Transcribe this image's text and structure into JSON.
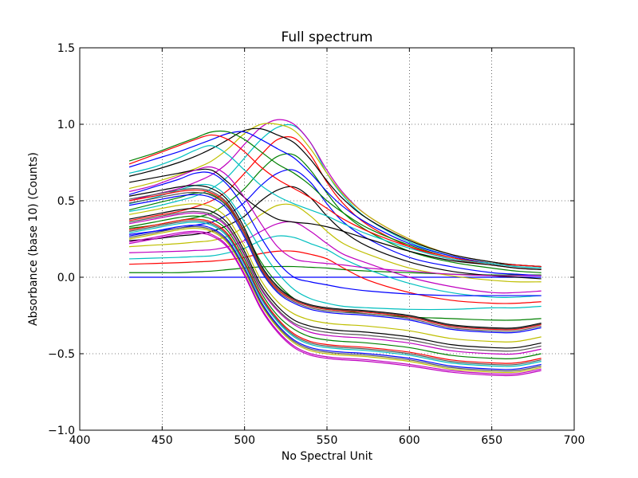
{
  "chart_data": {
    "type": "line",
    "title": "Full spectrum",
    "xlabel": "No Spectral Unit",
    "ylabel": "Absorbance (base 10) (Counts)",
    "xlim": [
      400,
      700
    ],
    "ylim": [
      -1.0,
      1.5
    ],
    "x_ticks": [
      "400",
      "450",
      "500",
      "550",
      "600",
      "650",
      "700"
    ],
    "y_ticks": [
      "−1.0",
      "−0.5",
      "0.0",
      "0.5",
      "1.0",
      "1.5"
    ],
    "grid": true,
    "legend": "none",
    "x": [
      430,
      445,
      460,
      470,
      480,
      490,
      500,
      510,
      520,
      530,
      540,
      550,
      560,
      575,
      600,
      625,
      650,
      665,
      680
    ],
    "series": [
      {
        "color": "#0000ff",
        "values": [
          0.0,
          0.0,
          0.0,
          0.0,
          0.0,
          0.0,
          0.0,
          0.0,
          0.0,
          0.0,
          0.0,
          0.0,
          0.0,
          0.0,
          0.0,
          0.0,
          0.0,
          0.0,
          0.0
        ]
      },
      {
        "color": "#008000",
        "values": [
          0.03,
          0.03,
          0.03,
          0.035,
          0.04,
          0.05,
          0.06,
          0.068,
          0.07,
          0.07,
          0.065,
          0.06,
          0.05,
          0.04,
          0.03,
          0.02,
          0.015,
          0.015,
          0.015
        ]
      },
      {
        "color": "#ff0000",
        "values": [
          0.085,
          0.09,
          0.095,
          0.1,
          0.105,
          0.115,
          0.13,
          0.155,
          0.17,
          0.17,
          0.15,
          0.12,
          0.06,
          -0.02,
          -0.1,
          -0.15,
          -0.17,
          -0.17,
          -0.16
        ]
      },
      {
        "color": "#00bfbf",
        "values": [
          0.12,
          0.125,
          0.13,
          0.135,
          0.14,
          0.16,
          0.19,
          0.24,
          0.27,
          0.26,
          0.22,
          0.18,
          0.12,
          0.05,
          -0.04,
          -0.1,
          -0.13,
          -0.13,
          -0.12
        ]
      },
      {
        "color": "#bf00bf",
        "values": [
          0.16,
          0.165,
          0.17,
          0.175,
          0.18,
          0.2,
          0.24,
          0.3,
          0.35,
          0.36,
          0.3,
          0.22,
          0.15,
          0.09,
          0.0,
          -0.06,
          -0.1,
          -0.1,
          -0.09
        ]
      },
      {
        "color": "#bfbf00",
        "values": [
          0.2,
          0.21,
          0.22,
          0.23,
          0.24,
          0.27,
          0.33,
          0.41,
          0.47,
          0.47,
          0.4,
          0.3,
          0.22,
          0.15,
          0.06,
          0.01,
          -0.02,
          -0.03,
          -0.03
        ]
      },
      {
        "color": "#000000",
        "values": [
          0.24,
          0.25,
          0.27,
          0.28,
          0.3,
          0.34,
          0.4,
          0.5,
          0.57,
          0.59,
          0.52,
          0.4,
          0.3,
          0.2,
          0.1,
          0.04,
          0.01,
          0.0,
          -0.01
        ]
      },
      {
        "color": "#0000ff",
        "values": [
          0.28,
          0.3,
          0.32,
          0.34,
          0.36,
          0.41,
          0.49,
          0.6,
          0.68,
          0.7,
          0.62,
          0.48,
          0.36,
          0.25,
          0.13,
          0.07,
          0.03,
          0.02,
          0.01
        ]
      },
      {
        "color": "#008000",
        "values": [
          0.32,
          0.34,
          0.37,
          0.39,
          0.42,
          0.49,
          0.58,
          0.7,
          0.79,
          0.8,
          0.7,
          0.55,
          0.42,
          0.3,
          0.17,
          0.1,
          0.06,
          0.04,
          0.03
        ]
      },
      {
        "color": "#ff0000",
        "values": [
          0.37,
          0.4,
          0.43,
          0.46,
          0.5,
          0.57,
          0.68,
          0.8,
          0.9,
          0.91,
          0.8,
          0.62,
          0.48,
          0.34,
          0.2,
          0.12,
          0.08,
          0.06,
          0.05
        ]
      },
      {
        "color": "#00bfbf",
        "values": [
          0.43,
          0.46,
          0.5,
          0.53,
          0.58,
          0.66,
          0.78,
          0.9,
          0.98,
          0.99,
          0.88,
          0.68,
          0.53,
          0.38,
          0.23,
          0.14,
          0.09,
          0.07,
          0.06
        ]
      },
      {
        "color": "#bf00bf",
        "values": [
          0.5,
          0.54,
          0.58,
          0.62,
          0.67,
          0.75,
          0.87,
          0.98,
          1.03,
          1.0,
          0.88,
          0.7,
          0.55,
          0.4,
          0.25,
          0.15,
          0.1,
          0.08,
          0.07
        ]
      },
      {
        "color": "#bfbf00",
        "values": [
          0.58,
          0.62,
          0.67,
          0.71,
          0.76,
          0.84,
          0.94,
          1.0,
          1.0,
          0.96,
          0.84,
          0.68,
          0.54,
          0.4,
          0.25,
          0.15,
          0.1,
          0.08,
          0.07
        ]
      },
      {
        "color": "#000000",
        "values": [
          0.66,
          0.7,
          0.75,
          0.79,
          0.84,
          0.9,
          0.96,
          0.97,
          0.93,
          0.88,
          0.77,
          0.63,
          0.51,
          0.38,
          0.24,
          0.15,
          0.1,
          0.08,
          0.07
        ]
      },
      {
        "color": "#0000ff",
        "values": [
          0.72,
          0.77,
          0.82,
          0.86,
          0.9,
          0.94,
          0.95,
          0.9,
          0.84,
          0.78,
          0.68,
          0.56,
          0.46,
          0.35,
          0.22,
          0.14,
          0.09,
          0.08,
          0.07
        ]
      },
      {
        "color": "#008000",
        "values": [
          0.76,
          0.81,
          0.87,
          0.91,
          0.95,
          0.95,
          0.9,
          0.82,
          0.74,
          0.68,
          0.6,
          0.5,
          0.42,
          0.32,
          0.21,
          0.13,
          0.09,
          0.08,
          0.07
        ]
      },
      {
        "color": "#ff0000",
        "values": [
          0.74,
          0.8,
          0.86,
          0.9,
          0.93,
          0.9,
          0.82,
          0.72,
          0.64,
          0.58,
          0.52,
          0.45,
          0.38,
          0.3,
          0.2,
          0.13,
          0.09,
          0.08,
          0.07
        ]
      },
      {
        "color": "#00bfbf",
        "values": [
          0.68,
          0.72,
          0.78,
          0.83,
          0.86,
          0.8,
          0.7,
          0.6,
          0.53,
          0.48,
          0.44,
          0.4,
          0.35,
          0.28,
          0.19,
          0.12,
          0.09,
          0.07,
          0.06
        ]
      },
      {
        "color": "#000000",
        "values": [
          0.62,
          0.65,
          0.68,
          0.7,
          0.7,
          0.62,
          0.52,
          0.44,
          0.38,
          0.36,
          0.35,
          0.33,
          0.3,
          0.25,
          0.17,
          0.11,
          0.08,
          0.06,
          0.05
        ]
      },
      {
        "color": "#bf00bf",
        "values": [
          0.56,
          0.6,
          0.66,
          0.7,
          0.72,
          0.66,
          0.52,
          0.35,
          0.2,
          0.12,
          0.1,
          0.09,
          0.08,
          0.06,
          0.04,
          0.02,
          0.01,
          0.01,
          0.01
        ]
      },
      {
        "color": "#0000ff",
        "values": [
          0.54,
          0.59,
          0.64,
          0.68,
          0.68,
          0.6,
          0.45,
          0.26,
          0.1,
          0.0,
          -0.03,
          -0.05,
          -0.07,
          -0.09,
          -0.11,
          -0.12,
          -0.12,
          -0.12,
          -0.12
        ]
      },
      {
        "color": "#00bfbf",
        "values": [
          0.48,
          0.52,
          0.57,
          0.6,
          0.6,
          0.52,
          0.36,
          0.18,
          0.03,
          -0.08,
          -0.14,
          -0.17,
          -0.19,
          -0.2,
          -0.21,
          -0.21,
          -0.2,
          -0.2,
          -0.19
        ]
      },
      {
        "color": "#008000",
        "values": [
          0.44,
          0.48,
          0.52,
          0.55,
          0.54,
          0.46,
          0.3,
          0.1,
          -0.04,
          -0.14,
          -0.19,
          -0.21,
          -0.22,
          -0.24,
          -0.26,
          -0.27,
          -0.28,
          -0.28,
          -0.27
        ]
      },
      {
        "color": "#000000",
        "values": [
          0.53,
          0.56,
          0.59,
          0.6,
          0.58,
          0.5,
          0.32,
          0.08,
          -0.06,
          -0.14,
          -0.18,
          -0.2,
          -0.21,
          -0.22,
          -0.25,
          -0.31,
          -0.33,
          -0.33,
          -0.3
        ]
      },
      {
        "color": "#ff0000",
        "values": [
          0.5,
          0.53,
          0.56,
          0.57,
          0.55,
          0.47,
          0.29,
          0.06,
          -0.08,
          -0.15,
          -0.19,
          -0.21,
          -0.22,
          -0.23,
          -0.26,
          -0.32,
          -0.34,
          -0.34,
          -0.31
        ]
      },
      {
        "color": "#0000ff",
        "values": [
          0.47,
          0.5,
          0.53,
          0.54,
          0.52,
          0.44,
          0.26,
          0.04,
          -0.1,
          -0.17,
          -0.21,
          -0.23,
          -0.24,
          -0.25,
          -0.28,
          -0.34,
          -0.36,
          -0.36,
          -0.33
        ]
      },
      {
        "color": "#bfbf00",
        "values": [
          0.41,
          0.44,
          0.47,
          0.48,
          0.46,
          0.38,
          0.2,
          -0.02,
          -0.16,
          -0.24,
          -0.28,
          -0.3,
          -0.31,
          -0.32,
          -0.35,
          -0.4,
          -0.42,
          -0.42,
          -0.39
        ]
      },
      {
        "color": "#000000",
        "values": [
          0.38,
          0.41,
          0.44,
          0.45,
          0.43,
          0.35,
          0.17,
          -0.05,
          -0.19,
          -0.28,
          -0.32,
          -0.34,
          -0.35,
          -0.36,
          -0.39,
          -0.44,
          -0.46,
          -0.46,
          -0.43
        ]
      },
      {
        "color": "#bf00bf",
        "values": [
          0.35,
          0.38,
          0.41,
          0.42,
          0.4,
          0.32,
          0.14,
          -0.08,
          -0.22,
          -0.31,
          -0.36,
          -0.38,
          -0.39,
          -0.4,
          -0.43,
          -0.48,
          -0.5,
          -0.5,
          -0.47
        ]
      },
      {
        "color": "#008000",
        "values": [
          0.33,
          0.36,
          0.39,
          0.4,
          0.38,
          0.3,
          0.12,
          -0.1,
          -0.25,
          -0.34,
          -0.39,
          -0.41,
          -0.42,
          -0.43,
          -0.46,
          -0.51,
          -0.53,
          -0.53,
          -0.5
        ]
      },
      {
        "color": "#ff0000",
        "values": [
          0.31,
          0.34,
          0.37,
          0.38,
          0.36,
          0.28,
          0.1,
          -0.12,
          -0.27,
          -0.37,
          -0.42,
          -0.44,
          -0.45,
          -0.46,
          -0.49,
          -0.54,
          -0.56,
          -0.56,
          -0.53
        ]
      },
      {
        "color": "#00bfbf",
        "values": [
          0.29,
          0.32,
          0.35,
          0.36,
          0.34,
          0.26,
          0.08,
          -0.14,
          -0.29,
          -0.39,
          -0.44,
          -0.46,
          -0.47,
          -0.48,
          -0.51,
          -0.56,
          -0.58,
          -0.58,
          -0.55
        ]
      },
      {
        "color": "#0000ff",
        "values": [
          0.27,
          0.3,
          0.33,
          0.34,
          0.32,
          0.24,
          0.06,
          -0.16,
          -0.31,
          -0.41,
          -0.46,
          -0.48,
          -0.49,
          -0.5,
          -0.53,
          -0.58,
          -0.6,
          -0.6,
          -0.57
        ]
      },
      {
        "color": "#bfbf00",
        "values": [
          0.25,
          0.28,
          0.31,
          0.32,
          0.3,
          0.22,
          0.04,
          -0.18,
          -0.33,
          -0.43,
          -0.48,
          -0.5,
          -0.51,
          -0.52,
          -0.55,
          -0.6,
          -0.62,
          -0.62,
          -0.59
        ]
      },
      {
        "color": "#bf00bf",
        "values": [
          0.23,
          0.26,
          0.29,
          0.3,
          0.28,
          0.2,
          0.02,
          -0.2,
          -0.35,
          -0.45,
          -0.5,
          -0.52,
          -0.53,
          -0.54,
          -0.57,
          -0.61,
          -0.63,
          -0.63,
          -0.6
        ]
      },
      {
        "color": "#555555",
        "values": [
          0.51,
          0.54,
          0.57,
          0.58,
          0.56,
          0.48,
          0.3,
          0.07,
          -0.07,
          -0.145,
          -0.185,
          -0.205,
          -0.215,
          -0.225,
          -0.255,
          -0.315,
          -0.335,
          -0.335,
          -0.305
        ]
      },
      {
        "color": "#555555",
        "values": [
          0.485,
          0.515,
          0.545,
          0.555,
          0.535,
          0.455,
          0.275,
          0.05,
          -0.09,
          -0.16,
          -0.2,
          -0.22,
          -0.23,
          -0.24,
          -0.27,
          -0.33,
          -0.35,
          -0.35,
          -0.32
        ]
      },
      {
        "color": "#555555",
        "values": [
          0.36,
          0.39,
          0.42,
          0.43,
          0.41,
          0.33,
          0.15,
          -0.07,
          -0.21,
          -0.3,
          -0.34,
          -0.36,
          -0.37,
          -0.38,
          -0.41,
          -0.46,
          -0.48,
          -0.48,
          -0.45
        ]
      },
      {
        "color": "#555555",
        "values": [
          0.3,
          0.33,
          0.36,
          0.37,
          0.35,
          0.27,
          0.09,
          -0.13,
          -0.28,
          -0.38,
          -0.43,
          -0.45,
          -0.46,
          -0.47,
          -0.5,
          -0.55,
          -0.57,
          -0.57,
          -0.54
        ]
      },
      {
        "color": "#555555",
        "values": [
          0.26,
          0.29,
          0.32,
          0.33,
          0.31,
          0.23,
          0.05,
          -0.17,
          -0.32,
          -0.42,
          -0.47,
          -0.49,
          -0.5,
          -0.51,
          -0.54,
          -0.59,
          -0.61,
          -0.61,
          -0.58
        ]
      },
      {
        "color": "#bf00bf",
        "values": [
          0.22,
          0.25,
          0.28,
          0.29,
          0.27,
          0.19,
          0.01,
          -0.21,
          -0.36,
          -0.46,
          -0.51,
          -0.53,
          -0.54,
          -0.55,
          -0.58,
          -0.62,
          -0.64,
          -0.64,
          -0.61
        ]
      }
    ]
  }
}
